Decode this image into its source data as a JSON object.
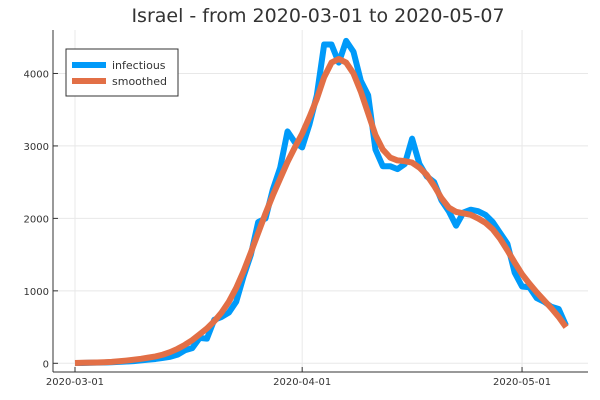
{
  "chart_data": {
    "type": "line",
    "title": "Israel - from 2020-03-01 to 2020-05-07",
    "xlabel": "",
    "ylabel": "",
    "x_type": "date",
    "xlim": [
      "2020-02-27",
      "2020-05-10"
    ],
    "ylim": [
      -120,
      4600
    ],
    "x_ticks": [
      "2020-03-01",
      "2020-04-01",
      "2020-05-01"
    ],
    "y_ticks": [
      0,
      1000,
      2000,
      3000,
      4000
    ],
    "grid": true,
    "legend": "top-left",
    "series": [
      {
        "name": "infectious",
        "color": "#009af9",
        "x": [
          "2020-03-01",
          "2020-03-02",
          "2020-03-03",
          "2020-03-04",
          "2020-03-05",
          "2020-03-06",
          "2020-03-07",
          "2020-03-08",
          "2020-03-09",
          "2020-03-10",
          "2020-03-11",
          "2020-03-12",
          "2020-03-13",
          "2020-03-14",
          "2020-03-15",
          "2020-03-16",
          "2020-03-17",
          "2020-03-18",
          "2020-03-19",
          "2020-03-20",
          "2020-03-21",
          "2020-03-22",
          "2020-03-23",
          "2020-03-24",
          "2020-03-25",
          "2020-03-26",
          "2020-03-27",
          "2020-03-28",
          "2020-03-29",
          "2020-03-30",
          "2020-03-31",
          "2020-04-01",
          "2020-04-02",
          "2020-04-03",
          "2020-04-04",
          "2020-04-05",
          "2020-04-06",
          "2020-04-07",
          "2020-04-08",
          "2020-04-09",
          "2020-04-10",
          "2020-04-11",
          "2020-04-12",
          "2020-04-13",
          "2020-04-14",
          "2020-04-15",
          "2020-04-16",
          "2020-04-17",
          "2020-04-18",
          "2020-04-19",
          "2020-04-20",
          "2020-04-21",
          "2020-04-22",
          "2020-04-23",
          "2020-04-24",
          "2020-04-25",
          "2020-04-26",
          "2020-04-27",
          "2020-04-28",
          "2020-04-29",
          "2020-04-30",
          "2020-05-01",
          "2020-05-02",
          "2020-05-03",
          "2020-05-04",
          "2020-05-05",
          "2020-05-06",
          "2020-05-07"
        ],
        "y": [
          5,
          5,
          8,
          10,
          12,
          15,
          20,
          25,
          30,
          40,
          50,
          60,
          75,
          90,
          120,
          180,
          210,
          350,
          340,
          600,
          640,
          700,
          850,
          1200,
          1500,
          1950,
          2000,
          2400,
          2700,
          3200,
          3050,
          2980,
          3300,
          3700,
          4400,
          4400,
          4150,
          4450,
          4300,
          3900,
          3700,
          2950,
          2720,
          2720,
          2680,
          2750,
          3100,
          2750,
          2580,
          2500,
          2250,
          2100,
          1900,
          2080,
          2120,
          2100,
          2050,
          1950,
          1800,
          1650,
          1250,
          1060,
          1050,
          900,
          850,
          780,
          750,
          520
        ]
      },
      {
        "name": "smoothed",
        "color": "#e26f46",
        "x": [
          "2020-03-01",
          "2020-03-02",
          "2020-03-03",
          "2020-03-04",
          "2020-03-05",
          "2020-03-06",
          "2020-03-07",
          "2020-03-08",
          "2020-03-09",
          "2020-03-10",
          "2020-03-11",
          "2020-03-12",
          "2020-03-13",
          "2020-03-14",
          "2020-03-15",
          "2020-03-16",
          "2020-03-17",
          "2020-03-18",
          "2020-03-19",
          "2020-03-20",
          "2020-03-21",
          "2020-03-22",
          "2020-03-23",
          "2020-03-24",
          "2020-03-25",
          "2020-03-26",
          "2020-03-27",
          "2020-03-28",
          "2020-03-29",
          "2020-03-30",
          "2020-03-31",
          "2020-04-01",
          "2020-04-02",
          "2020-04-03",
          "2020-04-04",
          "2020-04-05",
          "2020-04-06",
          "2020-04-07",
          "2020-04-08",
          "2020-04-09",
          "2020-04-10",
          "2020-04-11",
          "2020-04-12",
          "2020-04-13",
          "2020-04-14",
          "2020-04-15",
          "2020-04-16",
          "2020-04-17",
          "2020-04-18",
          "2020-04-19",
          "2020-04-20",
          "2020-04-21",
          "2020-04-22",
          "2020-04-23",
          "2020-04-24",
          "2020-04-25",
          "2020-04-26",
          "2020-04-27",
          "2020-04-28",
          "2020-04-29",
          "2020-04-30",
          "2020-05-01",
          "2020-05-02",
          "2020-05-03",
          "2020-05-04",
          "2020-05-05",
          "2020-05-06",
          "2020-05-07"
        ],
        "y": [
          5,
          8,
          10,
          12,
          15,
          20,
          28,
          38,
          50,
          62,
          78,
          95,
          120,
          155,
          200,
          255,
          320,
          400,
          480,
          580,
          700,
          850,
          1040,
          1270,
          1530,
          1800,
          2070,
          2320,
          2550,
          2780,
          2980,
          3170,
          3400,
          3650,
          3950,
          4150,
          4200,
          4150,
          4000,
          3750,
          3450,
          3150,
          2950,
          2840,
          2800,
          2790,
          2770,
          2700,
          2600,
          2450,
          2280,
          2150,
          2090,
          2070,
          2050,
          2000,
          1940,
          1850,
          1720,
          1560,
          1390,
          1230,
          1100,
          980,
          870,
          760,
          640,
          500
        ]
      }
    ]
  }
}
